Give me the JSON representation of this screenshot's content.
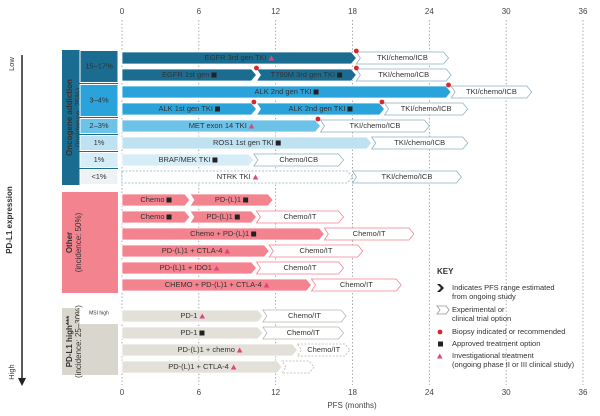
{
  "chart_data": {
    "type": "gantt",
    "xlabel": "PFS (months)",
    "xlim": [
      0,
      36
    ],
    "xticks": [
      0,
      6,
      12,
      18,
      24,
      30,
      36
    ],
    "grid": true,
    "axis_low": "Low",
    "axis_high": "High",
    "axis_title": "PD-L1 expression",
    "biopsy_color": "#d9262b",
    "square_color": "#222222",
    "triangle_color": "#e0447a",
    "groups": [
      {
        "name": [
          "Oncogene addiction",
          "(incidence: 25%)"
        ],
        "color": "#1a6d90",
        "text_color": "#ffffff",
        "outline_color": "#8fb3c4",
        "bands": [
          {
            "incidence": "15–17%",
            "color": "#1a6d90",
            "text_color": "#ffffff",
            "rows": [
              {
                "segments": [
                  {
                    "label": "EGFR 3rd gen TKI",
                    "start": 0,
                    "end": 18.3,
                    "marker": "triangle"
                  },
                  {
                    "label": "TKI/chemo/ICB",
                    "start": 18.3,
                    "end": 25.5,
                    "style": "outline"
                  }
                ],
                "biopsy": [
                  18.3
                ]
              },
              {
                "segments": [
                  {
                    "label": "EGFR 1st gen",
                    "start": 0,
                    "end": 10.5,
                    "marker": "square"
                  },
                  {
                    "label": "T790M 3rd gen TKI",
                    "start": 10.5,
                    "end": 18.3,
                    "marker": "square"
                  },
                  {
                    "label": "TKI/chemo/ICB",
                    "start": 18.3,
                    "end": 25.7,
                    "style": "outline"
                  }
                ],
                "biopsy": [
                  10.5,
                  18.3
                ]
              }
            ]
          },
          {
            "incidence": "3–4%",
            "color": "#29a3da",
            "text_color": "#ffffff",
            "rows": [
              {
                "segments": [
                  {
                    "label": "ALK 2nd gen TKI",
                    "start": 0,
                    "end": 25.7,
                    "marker": "square"
                  },
                  {
                    "label": "TKI/chemo/ICB",
                    "start": 25.7,
                    "end": 32,
                    "style": "outline"
                  }
                ],
                "biopsy": [
                  25.5
                ]
              },
              {
                "segments": [
                  {
                    "label": "ALK 1st gen TKI",
                    "start": 0,
                    "end": 10.5,
                    "marker": "square"
                  },
                  {
                    "label": "ALK 2nd gen TKI",
                    "start": 10.5,
                    "end": 20.5,
                    "marker": "square"
                  },
                  {
                    "label": "TKI/chemo/ICB",
                    "start": 20.5,
                    "end": 27,
                    "style": "outline"
                  }
                ],
                "biopsy": [
                  10.3,
                  20.3
                ]
              }
            ]
          },
          {
            "incidence": "2–3%",
            "color": "#6dc2e8",
            "text_color": "#123344",
            "rows": [
              {
                "segments": [
                  {
                    "label": "MET exon 14 TKI",
                    "start": 0,
                    "end": 15.5,
                    "marker": "triangle"
                  },
                  {
                    "label": "TKI/chemo/ICB",
                    "start": 15.5,
                    "end": 24,
                    "style": "outline"
                  }
                ],
                "biopsy": [
                  15.3
                ]
              }
            ]
          },
          {
            "incidence": "1%",
            "color": "#bfe2f2",
            "text_color": "#123344",
            "rows": [
              {
                "segments": [
                  {
                    "label": "ROS1 1st gen TKI",
                    "start": 0,
                    "end": 19.5,
                    "marker": "square"
                  },
                  {
                    "label": "TKI/chemo/ICB",
                    "start": 19.5,
                    "end": 27,
                    "style": "outline"
                  }
                ]
              }
            ]
          },
          {
            "incidence": "1%",
            "color": "#d6edf7",
            "text_color": "#123344",
            "rows": [
              {
                "segments": [
                  {
                    "label": "BRAF/MEK TKI",
                    "start": 0,
                    "end": 10.3,
                    "marker": "square"
                  },
                  {
                    "label": "Chemo/ICB",
                    "start": 10.3,
                    "end": 17.3,
                    "style": "outline"
                  }
                ]
              }
            ]
          },
          {
            "incidence": "<1%",
            "color": "#eef2f5",
            "text_color": "#123344",
            "rows": [
              {
                "segments": [
                  {
                    "label": "NTRK TKI",
                    "start": 0,
                    "end": 18,
                    "marker": "triangle",
                    "style": "dashed"
                  },
                  {
                    "label": "TKI/chemo/ICB",
                    "start": 18,
                    "end": 26.5,
                    "style": "outline"
                  }
                ]
              }
            ]
          }
        ]
      },
      {
        "name": [
          "Other",
          "(incidence: 50%)"
        ],
        "color": "#f3838f",
        "text_color": "#222222",
        "outline_color": "#f3838f",
        "bands": [
          {
            "color": "#f3838f",
            "text_color": "#222222",
            "rows": [
              {
                "segments": [
                  {
                    "label": "Chemo",
                    "start": 0,
                    "end": 5.3,
                    "marker": "square"
                  },
                  {
                    "label": "PD-(L)1",
                    "start": 5.3,
                    "end": 11.8,
                    "marker": "square"
                  }
                ]
              },
              {
                "segments": [
                  {
                    "label": "Chemo",
                    "start": 0,
                    "end": 5.3,
                    "marker": "square"
                  },
                  {
                    "label": "PD-(L)1",
                    "start": 5.3,
                    "end": 10.5,
                    "marker": "square"
                  },
                  {
                    "label": "Chemo/IT",
                    "start": 10.5,
                    "end": 17.3,
                    "style": "outline"
                  }
                ]
              },
              {
                "segments": [
                  {
                    "label": "Chemo + PD-(L)1",
                    "start": 0,
                    "end": 15.8,
                    "marker": "square"
                  },
                  {
                    "label": "Chemo/IT",
                    "start": 15.8,
                    "end": 22.8,
                    "style": "outline"
                  }
                ]
              },
              {
                "segments": [
                  {
                    "label": "PD-(L)1 + CTLA-4",
                    "start": 0,
                    "end": 11.5,
                    "marker": "triangle"
                  },
                  {
                    "label": "Chemo/IT",
                    "start": 11.5,
                    "end": 18.8,
                    "style": "outline"
                  }
                ]
              },
              {
                "segments": [
                  {
                    "label": "PD-(L)1 + IDO1",
                    "start": 0,
                    "end": 10.5,
                    "marker": "triangle"
                  },
                  {
                    "label": "Chemo/IT",
                    "start": 10.5,
                    "end": 17.3,
                    "style": "outline"
                  }
                ]
              },
              {
                "segments": [
                  {
                    "label": "CHEMO + PD-(L)1 + CTLA-4",
                    "start": 0,
                    "end": 14.8,
                    "marker": "triangle"
                  },
                  {
                    "label": "Chemo/IT",
                    "start": 14.8,
                    "end": 21.8,
                    "style": "outline"
                  }
                ]
              }
            ]
          }
        ]
      },
      {
        "name": [
          "PD-L1 high***",
          "(incidence: 25–30%)"
        ],
        "color": "#d9d7cd",
        "text_color": "#222222",
        "outline_color": "#b9b7ad",
        "bands": [
          {
            "incidence": "MSI high",
            "color": "#e2e0d8",
            "text_color": "#222222",
            "rows": [
              {
                "segments": [
                  {
                    "label": "PD-1",
                    "start": 0,
                    "end": 11,
                    "marker": "triangle"
                  },
                  {
                    "label": "Chemo/IT",
                    "start": 11,
                    "end": 17.5,
                    "style": "outline"
                  }
                ]
              }
            ]
          },
          {
            "color": "#e2e0d8",
            "text_color": "#222222",
            "rows": [
              {
                "segments": [
                  {
                    "label": "PD-1",
                    "start": 0,
                    "end": 11,
                    "marker": "square"
                  },
                  {
                    "label": "Chemo/IT",
                    "start": 11,
                    "end": 17.3,
                    "style": "outline"
                  }
                ]
              },
              {
                "segments": [
                  {
                    "label": "PD-(L)1 + chemo",
                    "start": 0,
                    "end": 13.7,
                    "marker": "triangle"
                  },
                  {
                    "label": "Chemo/IT",
                    "start": 13.7,
                    "end": 17.8,
                    "style": "dashed"
                  }
                ]
              },
              {
                "segments": [
                  {
                    "label": "PD-(L)1 + CTLA-4",
                    "start": 0,
                    "end": 12.5,
                    "marker": "triangle"
                  },
                  {
                    "start": 12.5,
                    "end": 15,
                    "style": "dashed"
                  }
                ]
              }
            ]
          }
        ]
      }
    ],
    "key": {
      "title": "KEY",
      "items": [
        {
          "icon": "chevron",
          "lines": [
            "Indicates PFS range estimated",
            "from ongoing study"
          ]
        },
        {
          "icon": "outline",
          "lines": [
            "Experimental or",
            "clinical trial option"
          ]
        },
        {
          "icon": "biopsy",
          "lines": [
            "Biopsy indicated or recommended"
          ]
        },
        {
          "icon": "square",
          "lines": [
            "Approved treatment option"
          ]
        },
        {
          "icon": "triangle",
          "lines": [
            "Investigational treatment",
            "(ongoing phase II or III clinical study)"
          ]
        }
      ]
    }
  }
}
